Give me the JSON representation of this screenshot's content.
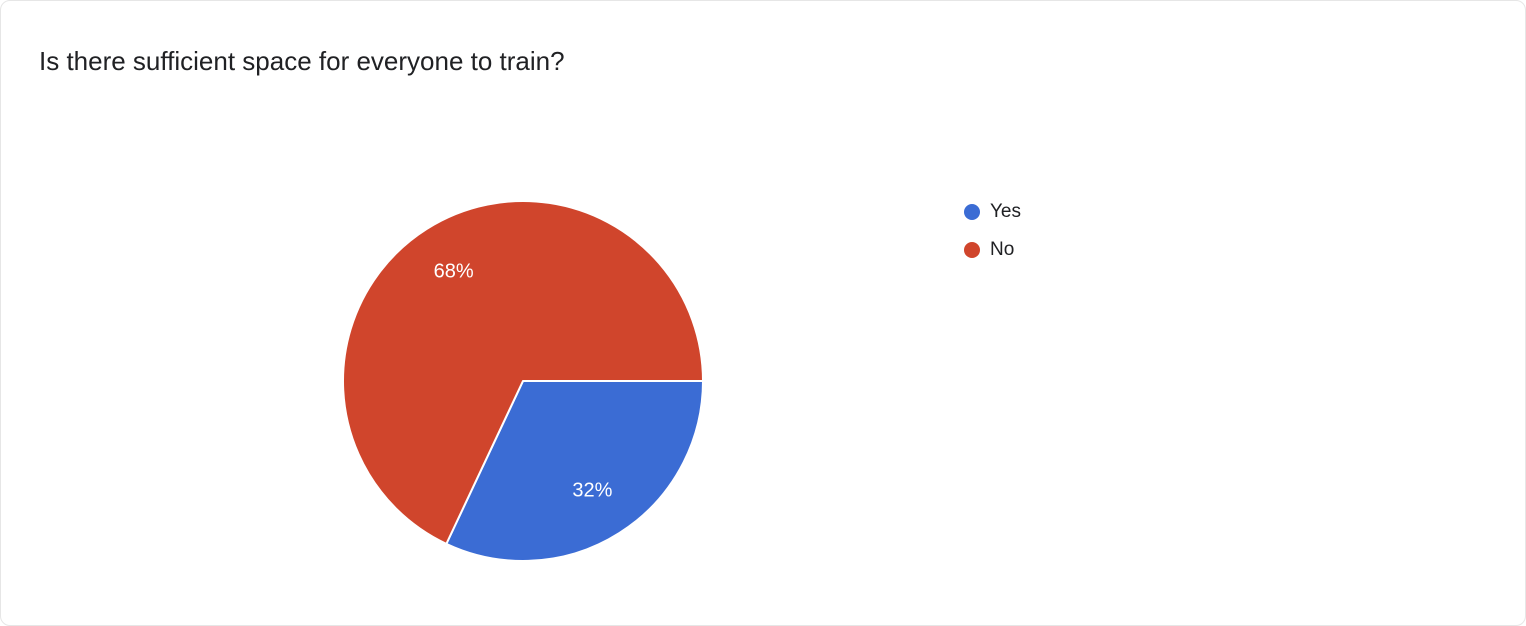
{
  "chart_data": {
    "type": "pie",
    "title": "Is there sufficient space for everyone to train?",
    "categories": [
      "Yes",
      "No"
    ],
    "values": [
      32,
      68
    ],
    "slice_labels": [
      "32%",
      "68%"
    ],
    "colors": [
      "#3b6cd4",
      "#d0452c"
    ],
    "legend_position": "right",
    "start_angle_deg": 0,
    "direction": "clockwise",
    "slice_label_color": "#ffffff",
    "slice_border_color": "#ffffff"
  }
}
